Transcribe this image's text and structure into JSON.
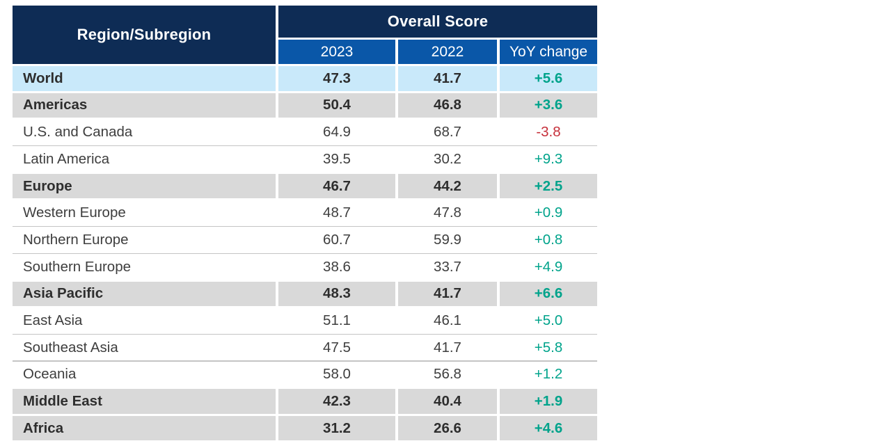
{
  "colors": {
    "navy": "#0e2c55",
    "blue": "#0a57a8",
    "light_blue": "#c9e9fa",
    "band_gray": "#d9d9d9",
    "positive": "#00a38b",
    "negative": "#c62f3a",
    "text_plain": "#3e3e3e",
    "text_bold": "#2e2e2e",
    "rule": "#c4c4c4"
  },
  "table": {
    "header": {
      "region_column_label": "Region/Subregion",
      "score_group_label": "Overall Score",
      "year_columns": [
        "2023",
        "2022",
        "YoY change"
      ]
    },
    "rows": [
      {
        "region": "World",
        "score_2023": "47.3",
        "score_2022": "41.7",
        "yoy_change": "+5.6",
        "emphasis": "highlight",
        "trend": "positive"
      },
      {
        "region": "Americas",
        "score_2023": "50.4",
        "score_2022": "46.8",
        "yoy_change": "+3.6",
        "emphasis": "band",
        "trend": "positive"
      },
      {
        "region": "U.S. and Canada",
        "score_2023": "64.9",
        "score_2022": "68.7",
        "yoy_change": "-3.8",
        "emphasis": "plain",
        "trend": "negative"
      },
      {
        "region": "Latin America",
        "score_2023": "39.5",
        "score_2022": "30.2",
        "yoy_change": "+9.3",
        "emphasis": "plain",
        "trend": "positive"
      },
      {
        "region": "Europe",
        "score_2023": "46.7",
        "score_2022": "44.2",
        "yoy_change": "+2.5",
        "emphasis": "band",
        "trend": "positive"
      },
      {
        "region": "Western Europe",
        "score_2023": "48.7",
        "score_2022": "47.8",
        "yoy_change": "+0.9",
        "emphasis": "plain",
        "trend": "positive"
      },
      {
        "region": "Northern Europe",
        "score_2023": "60.7",
        "score_2022": "59.9",
        "yoy_change": "+0.8",
        "emphasis": "plain",
        "trend": "positive"
      },
      {
        "region": "Southern Europe",
        "score_2023": "38.6",
        "score_2022": "33.7",
        "yoy_change": "+4.9",
        "emphasis": "plain",
        "trend": "positive"
      },
      {
        "region": "Asia Pacific",
        "score_2023": "48.3",
        "score_2022": "41.7",
        "yoy_change": "+6.6",
        "emphasis": "band",
        "trend": "positive"
      },
      {
        "region": "East Asia",
        "score_2023": "51.1",
        "score_2022": "46.1",
        "yoy_change": "+5.0",
        "emphasis": "plain",
        "trend": "positive"
      },
      {
        "region": "Southeast Asia",
        "score_2023": "47.5",
        "score_2022": "41.7",
        "yoy_change": "+5.8",
        "emphasis": "plain",
        "trend": "positive"
      },
      {
        "region": "Oceania",
        "score_2023": "58.0",
        "score_2022": "56.8",
        "yoy_change": "+1.2",
        "emphasis": "plain",
        "trend": "positive"
      },
      {
        "region": "Middle East",
        "score_2023": "42.3",
        "score_2022": "40.4",
        "yoy_change": "+1.9",
        "emphasis": "band",
        "trend": "positive"
      },
      {
        "region": "Africa",
        "score_2023": "31.2",
        "score_2022": "26.6",
        "yoy_change": "+4.6",
        "emphasis": "band",
        "trend": "positive"
      }
    ]
  },
  "chart_data": {
    "type": "table",
    "title": "Overall Score",
    "columns": [
      "Region/Subregion",
      "2023",
      "2022",
      "YoY change"
    ],
    "categories": [
      "World",
      "Americas",
      "U.S. and Canada",
      "Latin America",
      "Europe",
      "Western Europe",
      "Northern Europe",
      "Southern Europe",
      "Asia Pacific",
      "East Asia",
      "Southeast Asia",
      "Oceania",
      "Middle East",
      "Africa"
    ],
    "series": [
      {
        "name": "2023",
        "values": [
          47.3,
          50.4,
          64.9,
          39.5,
          46.7,
          48.7,
          60.7,
          38.6,
          48.3,
          51.1,
          47.5,
          58.0,
          42.3,
          31.2
        ]
      },
      {
        "name": "2022",
        "values": [
          41.7,
          46.8,
          68.7,
          30.2,
          44.2,
          47.8,
          59.9,
          33.7,
          41.7,
          46.1,
          41.7,
          56.8,
          40.4,
          26.6
        ]
      },
      {
        "name": "YoY change",
        "values": [
          5.6,
          3.6,
          -3.8,
          9.3,
          2.5,
          0.9,
          0.8,
          4.9,
          6.6,
          5.0,
          5.8,
          1.2,
          1.9,
          4.6
        ]
      }
    ]
  }
}
